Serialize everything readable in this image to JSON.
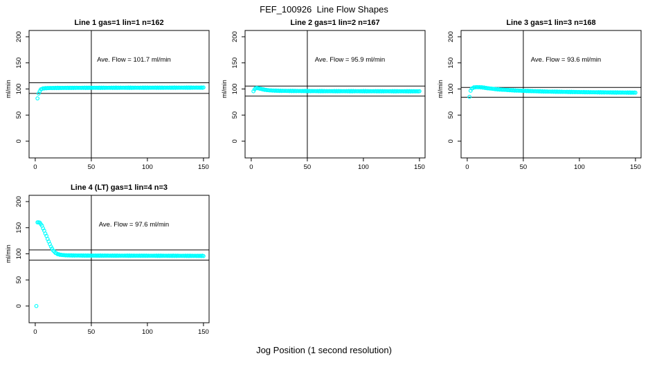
{
  "figure": {
    "title": "FEF_100926  Line Flow Shapes",
    "xlabel": "Jog Position (1 second resolution)",
    "background_color": "#ffffff",
    "point_color": "#00ffff",
    "line_color": "#000000"
  },
  "chart_data": [
    {
      "type": "scatter",
      "title": "Line 1 gas=1 lin=1 n=162",
      "annotation": "Ave. Flow =  101.7  ml/min",
      "ave_flow_ml_min": 101.7,
      "n": 162,
      "ylabel": "ml/min",
      "x_ticks": [
        0,
        50,
        100,
        150
      ],
      "y_ticks": [
        0,
        50,
        100,
        150,
        200
      ],
      "x_view": [
        -5.5,
        155
      ],
      "y_view": [
        -32,
        212
      ],
      "vline_x": 50,
      "hlines": [
        111.9,
        91.5
      ],
      "outliers": [
        [
          2,
          82
        ]
      ],
      "interpolation": "linear, 1 point per jog position",
      "keypoints": [
        [
          3,
          91
        ],
        [
          4,
          96
        ],
        [
          5,
          99
        ],
        [
          6,
          100.5
        ],
        [
          8,
          101.3
        ],
        [
          12,
          101.8
        ],
        [
          20,
          102
        ],
        [
          40,
          102.2
        ],
        [
          70,
          102.3
        ],
        [
          100,
          102.4
        ],
        [
          130,
          102.5
        ],
        [
          150,
          102.6
        ]
      ]
    },
    {
      "type": "scatter",
      "title": "Line 2 gas=1 lin=2 n=167",
      "annotation": "Ave. Flow =  95.9  ml/min",
      "ave_flow_ml_min": 95.9,
      "n": 167,
      "ylabel": "ml/min",
      "x_ticks": [
        0,
        50,
        100,
        150
      ],
      "y_ticks": [
        0,
        50,
        100,
        150,
        200
      ],
      "x_view": [
        -5.5,
        155
      ],
      "y_view": [
        -32,
        212
      ],
      "vline_x": 50,
      "hlines": [
        105.5,
        86.3
      ],
      "outliers": [],
      "interpolation": "linear, 1 point per jog position",
      "keypoints": [
        [
          2,
          95.5
        ],
        [
          3,
          99.5
        ],
        [
          4,
          101.5
        ],
        [
          5,
          102
        ],
        [
          7,
          101
        ],
        [
          9,
          100
        ],
        [
          11,
          99
        ],
        [
          13,
          98.2
        ],
        [
          16,
          97.4
        ],
        [
          20,
          96.9
        ],
        [
          25,
          96.5
        ],
        [
          35,
          96.2
        ],
        [
          50,
          96
        ],
        [
          70,
          95.8
        ],
        [
          100,
          95.7
        ],
        [
          125,
          95.6
        ],
        [
          150,
          95.5
        ]
      ]
    },
    {
      "type": "scatter",
      "title": "Line 3 gas=1 lin=3 n=168",
      "annotation": "Ave. Flow =  93.6  ml/min",
      "ave_flow_ml_min": 93.6,
      "n": 168,
      "ylabel": "ml/min",
      "x_ticks": [
        0,
        50,
        100,
        150
      ],
      "y_ticks": [
        0,
        50,
        100,
        150,
        200
      ],
      "x_view": [
        -5.5,
        155
      ],
      "y_view": [
        -32,
        212
      ],
      "vline_x": 50,
      "hlines": [
        103.0,
        84.2
      ],
      "outliers": [
        [
          2,
          85
        ]
      ],
      "interpolation": "linear, 1 point per jog position",
      "keypoints": [
        [
          3,
          97
        ],
        [
          4,
          100.5
        ],
        [
          5,
          102
        ],
        [
          6,
          103
        ],
        [
          8,
          103.5
        ],
        [
          12,
          103.3
        ],
        [
          15,
          102.5
        ],
        [
          18,
          101.5
        ],
        [
          22,
          100.5
        ],
        [
          26,
          99.5
        ],
        [
          30,
          98.8
        ],
        [
          36,
          98
        ],
        [
          42,
          97.2
        ],
        [
          50,
          96.5
        ],
        [
          60,
          95.7
        ],
        [
          72,
          95
        ],
        [
          85,
          94.5
        ],
        [
          100,
          94
        ],
        [
          115,
          93.6
        ],
        [
          130,
          93.3
        ],
        [
          150,
          93
        ]
      ]
    },
    {
      "type": "scatter",
      "title": "Line 4 (LT) gas=1 lin=4 n=3",
      "annotation": "Ave. Flow =  97.6  ml/min",
      "ave_flow_ml_min": 97.6,
      "n": 3,
      "ylabel": "ml/min",
      "x_ticks": [
        0,
        50,
        100,
        150
      ],
      "y_ticks": [
        0,
        50,
        100,
        150,
        200
      ],
      "x_view": [
        -5.5,
        155
      ],
      "y_view": [
        -32,
        212
      ],
      "vline_x": 50,
      "hlines": [
        107.4,
        87.8
      ],
      "outliers": [
        [
          1,
          0
        ]
      ],
      "interpolation": "linear, 1 point per jog position",
      "keypoints": [
        [
          2,
          160
        ],
        [
          3,
          160.5
        ],
        [
          4,
          159.5
        ],
        [
          5,
          157
        ],
        [
          6,
          153.5
        ],
        [
          7,
          149
        ],
        [
          8,
          144
        ],
        [
          9,
          139
        ],
        [
          10,
          134
        ],
        [
          11,
          128.5
        ],
        [
          12,
          123.5
        ],
        [
          13,
          118.5
        ],
        [
          14,
          114
        ],
        [
          15,
          110
        ],
        [
          16,
          106.5
        ],
        [
          17,
          104
        ],
        [
          18,
          102
        ],
        [
          19,
          100.5
        ],
        [
          20,
          99.5
        ],
        [
          22,
          98.3
        ],
        [
          24,
          97.7
        ],
        [
          27,
          97.2
        ],
        [
          30,
          97
        ],
        [
          36,
          96.8
        ],
        [
          45,
          96.6
        ],
        [
          60,
          96.5
        ],
        [
          80,
          96.4
        ],
        [
          100,
          96.3
        ],
        [
          120,
          96.2
        ],
        [
          150,
          96
        ]
      ]
    }
  ]
}
